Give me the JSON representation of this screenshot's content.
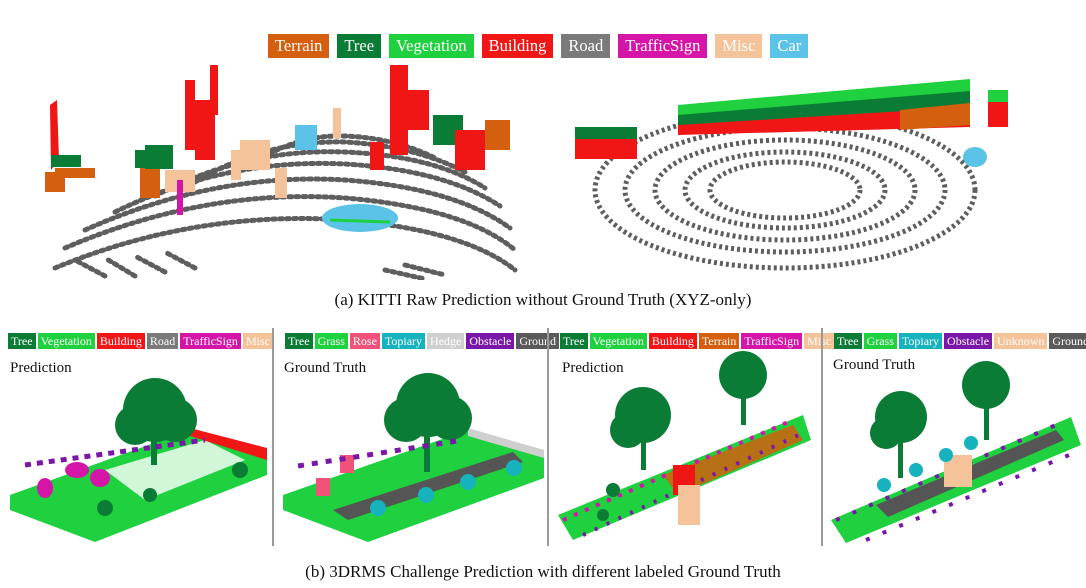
{
  "top_legend": [
    {
      "label": "Terrain",
      "color": "#d45f0e"
    },
    {
      "label": "Tree",
      "color": "#0b7c36"
    },
    {
      "label": "Vegetation",
      "color": "#1fd03f"
    },
    {
      "label": "Building",
      "color": "#f01616"
    },
    {
      "label": "Road",
      "color": "#7a7a7a"
    },
    {
      "label": "TrafficSign",
      "color": "#d415a8"
    },
    {
      "label": "Misc",
      "color": "#f5c39a"
    },
    {
      "label": "Car",
      "color": "#5cc3e8"
    }
  ],
  "caption_a": "(a) KITTI Raw Prediction without Ground Truth (XYZ-only)",
  "caption_b": "(b) 3DRMS Challenge Prediction with different labeled Ground Truth",
  "panels": [
    {
      "title": "Prediction",
      "legend": [
        {
          "label": "Tree",
          "color": "#0b7c36"
        },
        {
          "label": "Vegetation",
          "color": "#1fd03f"
        },
        {
          "label": "Building",
          "color": "#f01616"
        },
        {
          "label": "Road",
          "color": "#7a7a7a"
        },
        {
          "label": "TrafficSign",
          "color": "#d415a8"
        },
        {
          "label": "Misc",
          "color": "#f5c39a"
        }
      ]
    },
    {
      "title": "Ground Truth",
      "legend": [
        {
          "label": "Tree",
          "color": "#0b7c36"
        },
        {
          "label": "Grass",
          "color": "#1fd03f"
        },
        {
          "label": "Rose",
          "color": "#f0527a"
        },
        {
          "label": "Topiary",
          "color": "#16b3bf"
        },
        {
          "label": "Hedge",
          "color": "#cfcfcf"
        },
        {
          "label": "Obstacle",
          "color": "#7a16a8"
        },
        {
          "label": "Ground",
          "color": "#5a5a5a"
        }
      ]
    },
    {
      "title": "Prediction",
      "legend": [
        {
          "label": "Tree",
          "color": "#0b7c36"
        },
        {
          "label": "Vegetation",
          "color": "#1fd03f"
        },
        {
          "label": "Building",
          "color": "#f01616"
        },
        {
          "label": "Terrain",
          "color": "#d45f0e"
        },
        {
          "label": "TrafficSign",
          "color": "#d415a8"
        },
        {
          "label": "Misc",
          "color": "#f5c39a"
        }
      ]
    },
    {
      "title": "Ground Truth",
      "legend": [
        {
          "label": "Tree",
          "color": "#0b7c36"
        },
        {
          "label": "Grass",
          "color": "#1fd03f"
        },
        {
          "label": "Topiary",
          "color": "#16b3bf"
        },
        {
          "label": "Obstacle",
          "color": "#7a16a8"
        },
        {
          "label": "Unknown",
          "color": "#f5c39a"
        },
        {
          "label": "Ground",
          "color": "#5a5a5a"
        }
      ]
    }
  ]
}
